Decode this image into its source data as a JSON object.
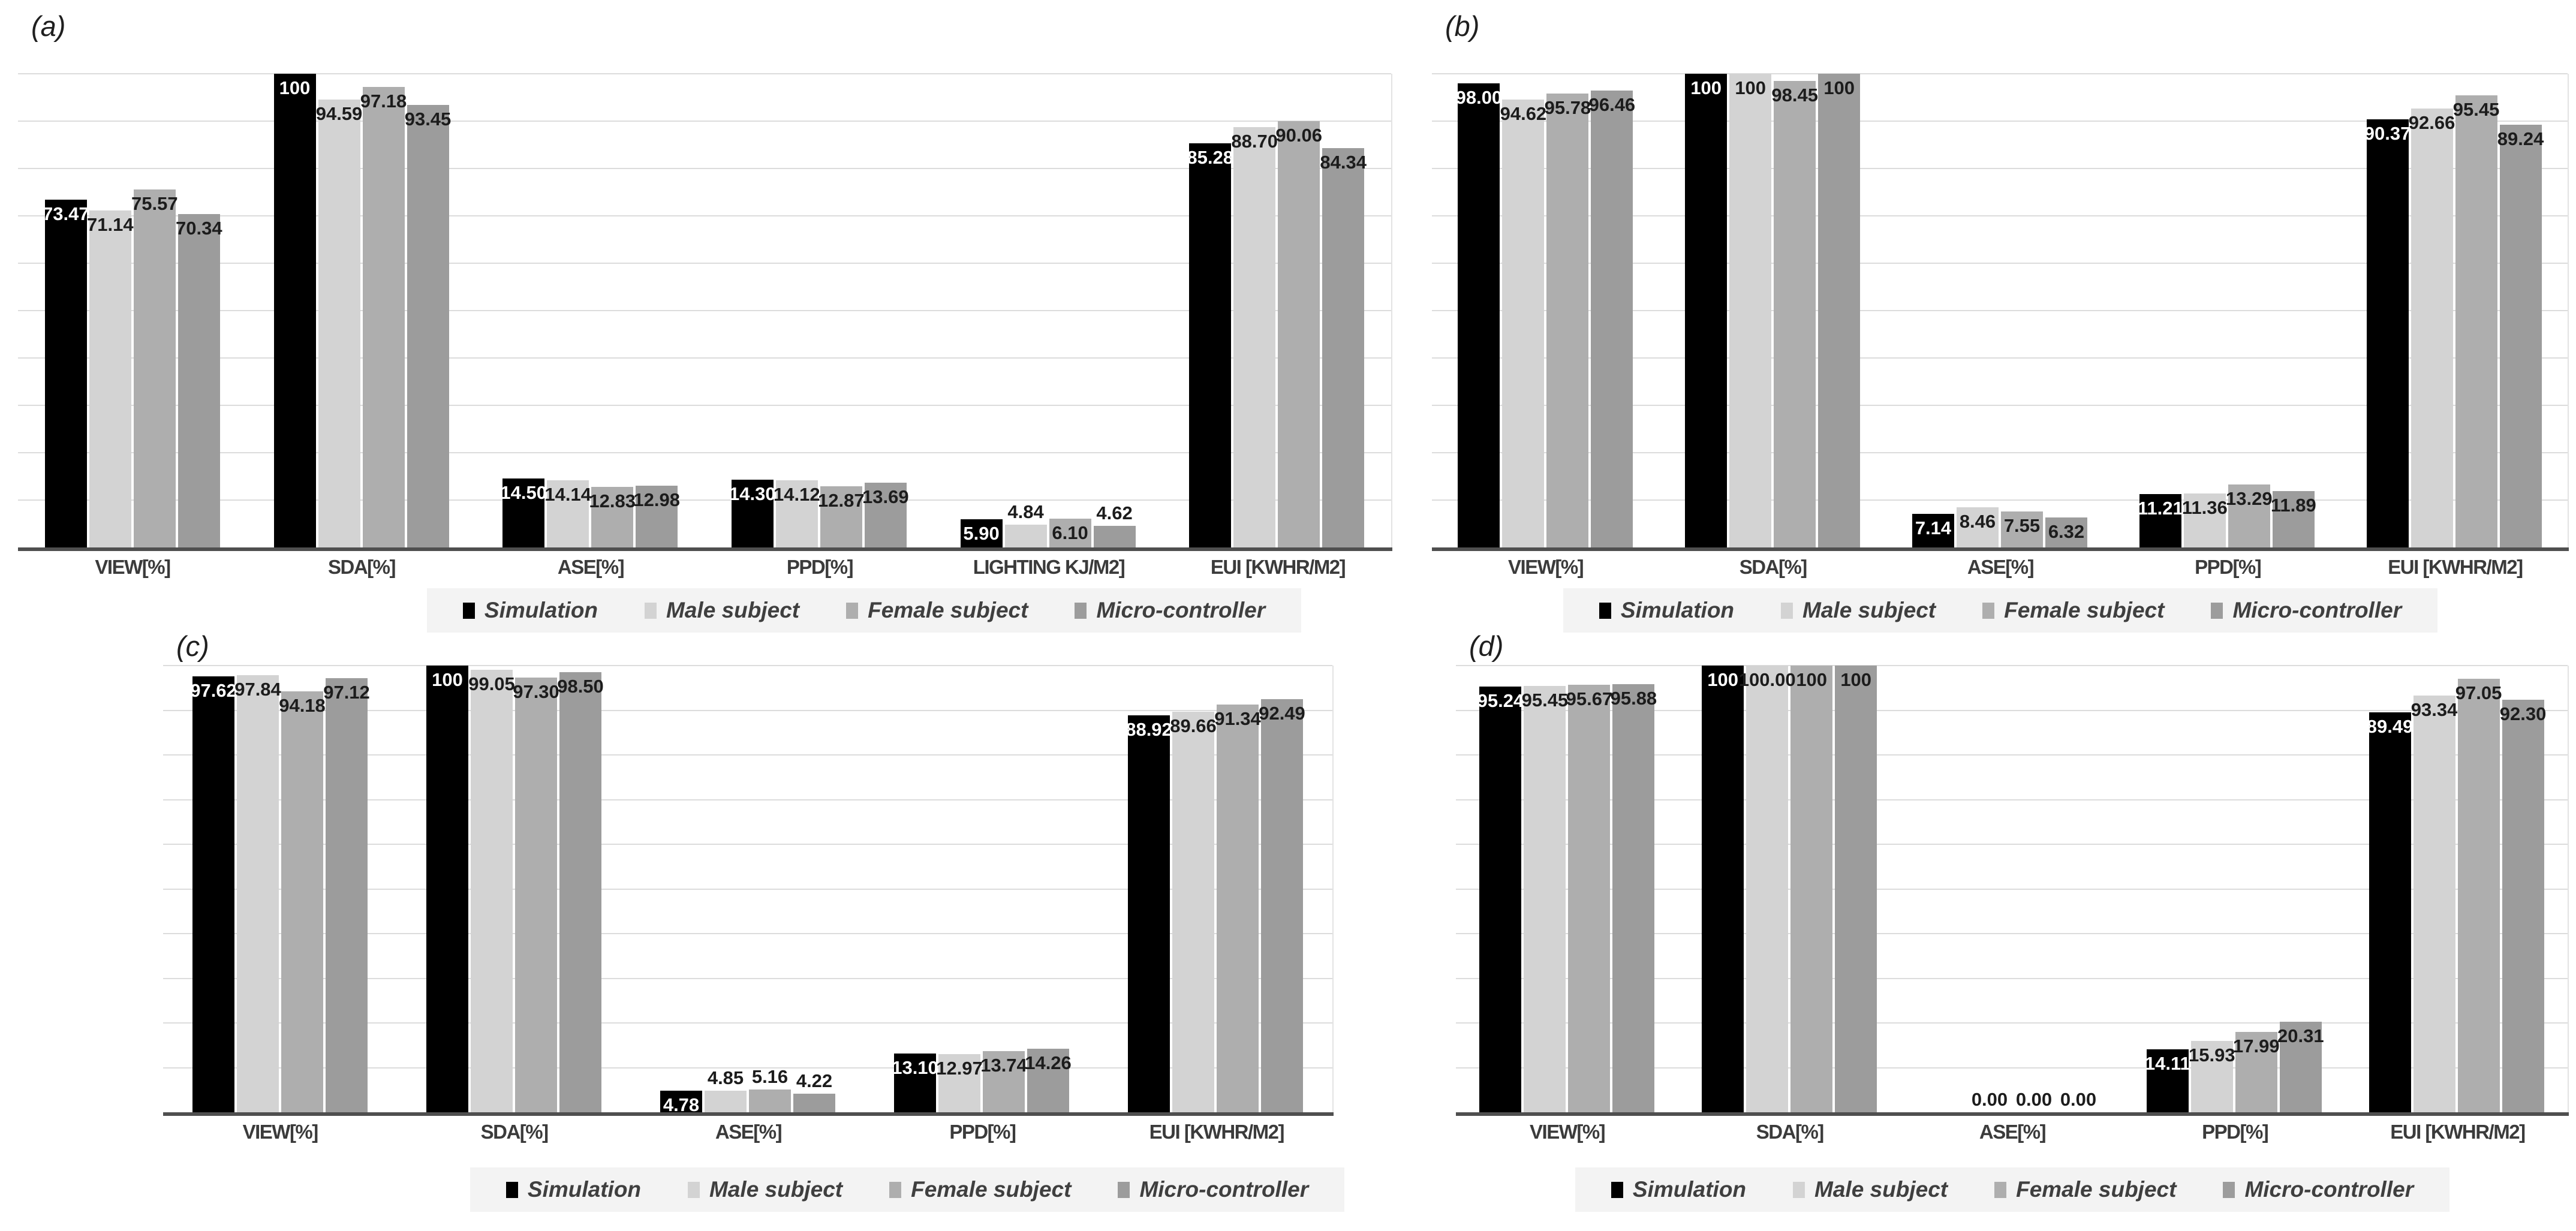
{
  "figure": {
    "background": "#ffffff"
  },
  "palette": {
    "series_colors": [
      "#000000",
      "#d3d3d3",
      "#aeaeae",
      "#9c9c9c"
    ],
    "label_color_on_dark": "#ffffff",
    "label_color_on_light": "#1c1c1c",
    "gridline_color": "#dcdcdc",
    "axis_color": "#4f4f4f",
    "legend_background": "#f3f3f3"
  },
  "legend": {
    "items": [
      "Simulation",
      "Male subject",
      "Female subject",
      "Micro-controller"
    ]
  },
  "chart_data": [
    {
      "type": "bar",
      "panel_label": "(a)",
      "ylim": [
        0,
        100
      ],
      "grid": true,
      "legend_position": "bottom",
      "categories": [
        "VIEW[%]",
        "SDA[%]",
        "ASE[%]",
        "PPD[%]",
        "LIGHTING KJ/M2]",
        "EUI [KWHR/M2]"
      ],
      "series": [
        {
          "name": "Simulation",
          "values": [
            73.47,
            100,
            14.5,
            14.3,
            5.9,
            85.28
          ],
          "labels": [
            "73.47",
            "100",
            "14.50",
            "14.30",
            "5.90",
            "85.28"
          ]
        },
        {
          "name": "Male subject",
          "values": [
            71.14,
            94.59,
            14.14,
            14.12,
            4.84,
            88.7
          ],
          "labels": [
            "71.14",
            "94.59",
            "14.14",
            "14.12",
            "4.84",
            "88.70"
          ]
        },
        {
          "name": "Female subject",
          "values": [
            75.57,
            97.18,
            12.83,
            12.87,
            6.1,
            90.06
          ],
          "labels": [
            "75.57",
            "97.18",
            "12.83",
            "12.87",
            "6.10",
            "90.06"
          ]
        },
        {
          "name": "Micro-controller",
          "values": [
            70.34,
            93.45,
            12.98,
            13.69,
            4.62,
            84.34
          ],
          "labels": [
            "70.34",
            "93.45",
            "12.98",
            "13.69",
            "4.62",
            "84.34"
          ]
        }
      ]
    },
    {
      "type": "bar",
      "panel_label": "(b)",
      "ylim": [
        0,
        100
      ],
      "grid": true,
      "legend_position": "bottom",
      "categories": [
        "VIEW[%]",
        "SDA[%]",
        "ASE[%]",
        "PPD[%]",
        "EUI [KWHR/M2]"
      ],
      "series": [
        {
          "name": "Simulation",
          "values": [
            98.0,
            100,
            7.14,
            11.21,
            90.37
          ],
          "labels": [
            "98.00",
            "100",
            "7.14",
            "11.21",
            "90.37"
          ]
        },
        {
          "name": "Male subject",
          "values": [
            94.62,
            100,
            8.46,
            11.36,
            92.66
          ],
          "labels": [
            "94.62",
            "100",
            "8.46",
            "11.36",
            "92.66"
          ]
        },
        {
          "name": "Female subject",
          "values": [
            95.78,
            98.45,
            7.55,
            13.29,
            95.45
          ],
          "labels": [
            "95.78",
            "98.45",
            "7.55",
            "13.29",
            "95.45"
          ]
        },
        {
          "name": "Micro-controller",
          "values": [
            96.46,
            100,
            6.32,
            11.89,
            89.24
          ],
          "labels": [
            "96.46",
            "100",
            "6.32",
            "11.89",
            "89.24"
          ]
        }
      ]
    },
    {
      "type": "bar",
      "panel_label": "(c)",
      "ylim": [
        0,
        100
      ],
      "grid": true,
      "legend_position": "bottom",
      "categories": [
        "VIEW[%]",
        "SDA[%]",
        "ASE[%]",
        "PPD[%]",
        "EUI [KWHR/M2]"
      ],
      "series": [
        {
          "name": "Simulation",
          "values": [
            97.62,
            100,
            4.78,
            13.1,
            88.92
          ],
          "labels": [
            "97.62",
            "100",
            "4.78",
            "13.10",
            "88.92"
          ]
        },
        {
          "name": "Male subject",
          "values": [
            97.84,
            99.05,
            4.85,
            12.97,
            89.66
          ],
          "labels": [
            "97.84",
            "99.05",
            "4.85",
            "12.97",
            "89.66"
          ]
        },
        {
          "name": "Female subject",
          "values": [
            94.18,
            97.3,
            5.16,
            13.74,
            91.34
          ],
          "labels": [
            "94.18",
            "97.30",
            "5.16",
            "13.74",
            "91.34"
          ]
        },
        {
          "name": "Micro-controller",
          "values": [
            97.12,
            98.5,
            4.22,
            14.26,
            92.49
          ],
          "labels": [
            "97.12",
            "98.50",
            "4.22",
            "14.26",
            "92.49"
          ]
        }
      ]
    },
    {
      "type": "bar",
      "panel_label": "(d)",
      "ylim": [
        0,
        100
      ],
      "grid": true,
      "legend_position": "bottom",
      "categories": [
        "VIEW[%]",
        "SDA[%]",
        "ASE[%]",
        "PPD[%]",
        "EUI [KWHR/M2]"
      ],
      "series": [
        {
          "name": "Simulation",
          "values": [
            95.24,
            100,
            0,
            14.11,
            89.49
          ],
          "labels": [
            "95.24",
            "100",
            "0.00",
            "14.11",
            "89.49"
          ]
        },
        {
          "name": "Male subject",
          "values": [
            95.45,
            100,
            0,
            15.93,
            93.34
          ],
          "labels": [
            "95.45",
            "100.00",
            "0.00",
            "15.93",
            "93.34"
          ]
        },
        {
          "name": "Female subject",
          "values": [
            95.67,
            100,
            0,
            17.99,
            97.05
          ],
          "labels": [
            "95.67",
            "100",
            "0.00",
            "17.99",
            "97.05"
          ]
        },
        {
          "name": "Micro-controller",
          "values": [
            95.88,
            100,
            0,
            20.31,
            92.3
          ],
          "labels": [
            "95.88",
            "100",
            "0.00",
            "20.31",
            "92.30"
          ]
        }
      ]
    }
  ]
}
